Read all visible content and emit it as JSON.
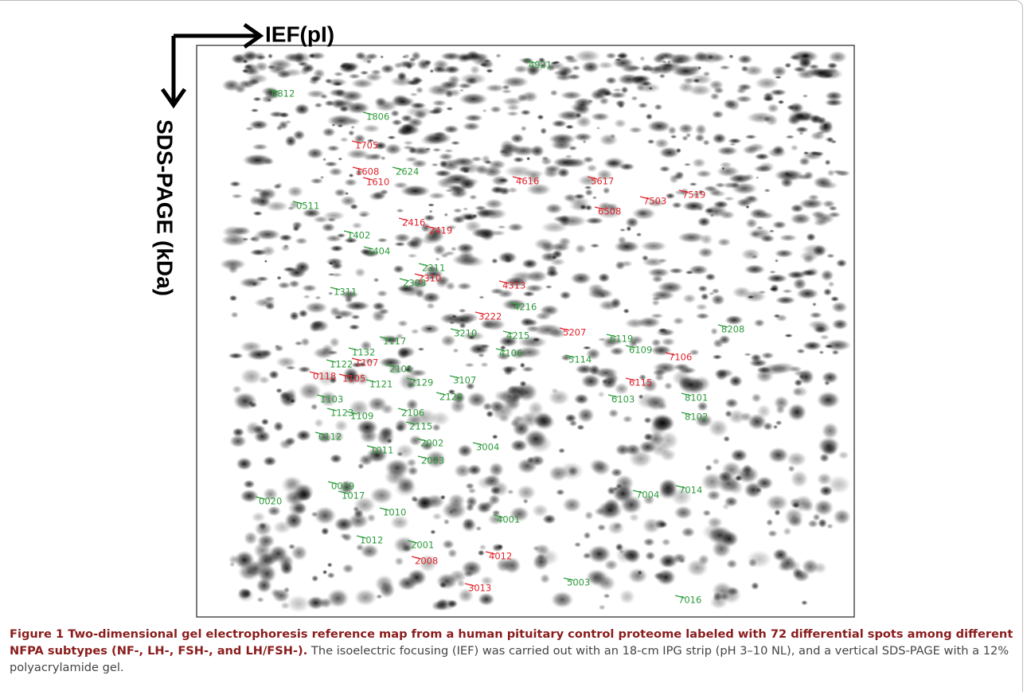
{
  "axes": {
    "x_label": "IEF(pI)",
    "y_label": "SDS-PAGE (kDa)"
  },
  "spots": [
    {
      "label": "4921",
      "color": "green"
    },
    {
      "label": "0812",
      "color": "green"
    },
    {
      "label": "1806",
      "color": "green"
    },
    {
      "label": "1705",
      "color": "red"
    },
    {
      "label": "1608",
      "color": "red"
    },
    {
      "label": "2624",
      "color": "green"
    },
    {
      "label": "1610",
      "color": "red"
    },
    {
      "label": "4616",
      "color": "red"
    },
    {
      "label": "5617",
      "color": "red"
    },
    {
      "label": "7503",
      "color": "red"
    },
    {
      "label": "7519",
      "color": "red"
    },
    {
      "label": "0511",
      "color": "green"
    },
    {
      "label": "6508",
      "color": "red"
    },
    {
      "label": "2416",
      "color": "red"
    },
    {
      "label": "2419",
      "color": "red"
    },
    {
      "label": "1402",
      "color": "green"
    },
    {
      "label": "1404",
      "color": "green"
    },
    {
      "label": "2311",
      "color": "green"
    },
    {
      "label": "2310",
      "color": "red"
    },
    {
      "label": "2303",
      "color": "green"
    },
    {
      "label": "4313",
      "color": "red"
    },
    {
      "label": "1311",
      "color": "green"
    },
    {
      "label": "4216",
      "color": "green"
    },
    {
      "label": "3222",
      "color": "red"
    },
    {
      "label": "3210",
      "color": "green"
    },
    {
      "label": "4215",
      "color": "green"
    },
    {
      "label": "5207",
      "color": "red"
    },
    {
      "label": "8208",
      "color": "green"
    },
    {
      "label": "6119",
      "color": "green"
    },
    {
      "label": "1117",
      "color": "green"
    },
    {
      "label": "6109",
      "color": "green"
    },
    {
      "label": "1132",
      "color": "green"
    },
    {
      "label": "1122",
      "color": "green"
    },
    {
      "label": "1107",
      "color": "red"
    },
    {
      "label": "4106",
      "color": "green"
    },
    {
      "label": "5114",
      "color": "green"
    },
    {
      "label": "7106",
      "color": "red"
    },
    {
      "label": "2101",
      "color": "green"
    },
    {
      "label": "0118",
      "color": "red"
    },
    {
      "label": "1105",
      "color": "red"
    },
    {
      "label": "3107",
      "color": "green"
    },
    {
      "label": "6115",
      "color": "red"
    },
    {
      "label": "2129",
      "color": "green"
    },
    {
      "label": "1121",
      "color": "green"
    },
    {
      "label": "2128",
      "color": "green"
    },
    {
      "label": "6103",
      "color": "green"
    },
    {
      "label": "8101",
      "color": "green"
    },
    {
      "label": "1103",
      "color": "green"
    },
    {
      "label": "1123",
      "color": "green"
    },
    {
      "label": "1109",
      "color": "green"
    },
    {
      "label": "2106",
      "color": "green"
    },
    {
      "label": "8102",
      "color": "green"
    },
    {
      "label": "2115",
      "color": "green"
    },
    {
      "label": "0112",
      "color": "green"
    },
    {
      "label": "2002",
      "color": "green"
    },
    {
      "label": "3004",
      "color": "green"
    },
    {
      "label": "1011",
      "color": "green"
    },
    {
      "label": "2003",
      "color": "green"
    },
    {
      "label": "0029",
      "color": "green"
    },
    {
      "label": "7004",
      "color": "green"
    },
    {
      "label": "7014",
      "color": "green"
    },
    {
      "label": "1017",
      "color": "green"
    },
    {
      "label": "0020",
      "color": "green"
    },
    {
      "label": "1010",
      "color": "green"
    },
    {
      "label": "4001",
      "color": "green"
    },
    {
      "label": "1012",
      "color": "green"
    },
    {
      "label": "2001",
      "color": "green"
    },
    {
      "label": "4012",
      "color": "red"
    },
    {
      "label": "2008",
      "color": "red"
    },
    {
      "label": "3013",
      "color": "red"
    },
    {
      "label": "5003",
      "color": "green"
    },
    {
      "label": "7016",
      "color": "green"
    }
  ],
  "caption": {
    "title": "Figure 1 Two-dimensional gel electrophoresis reference map from a human pituitary control proteome labeled with 72 differential spots among different NFPA subtypes (NF-, LH-, FSH-, and LH/FSH-).",
    "text": "The isoelectric focusing (IEF) was carried out with an 18-cm IPG strip (pH 3–10 NL), and a vertical SDS-PAGE with a 12% polyacrylamide gel."
  }
}
